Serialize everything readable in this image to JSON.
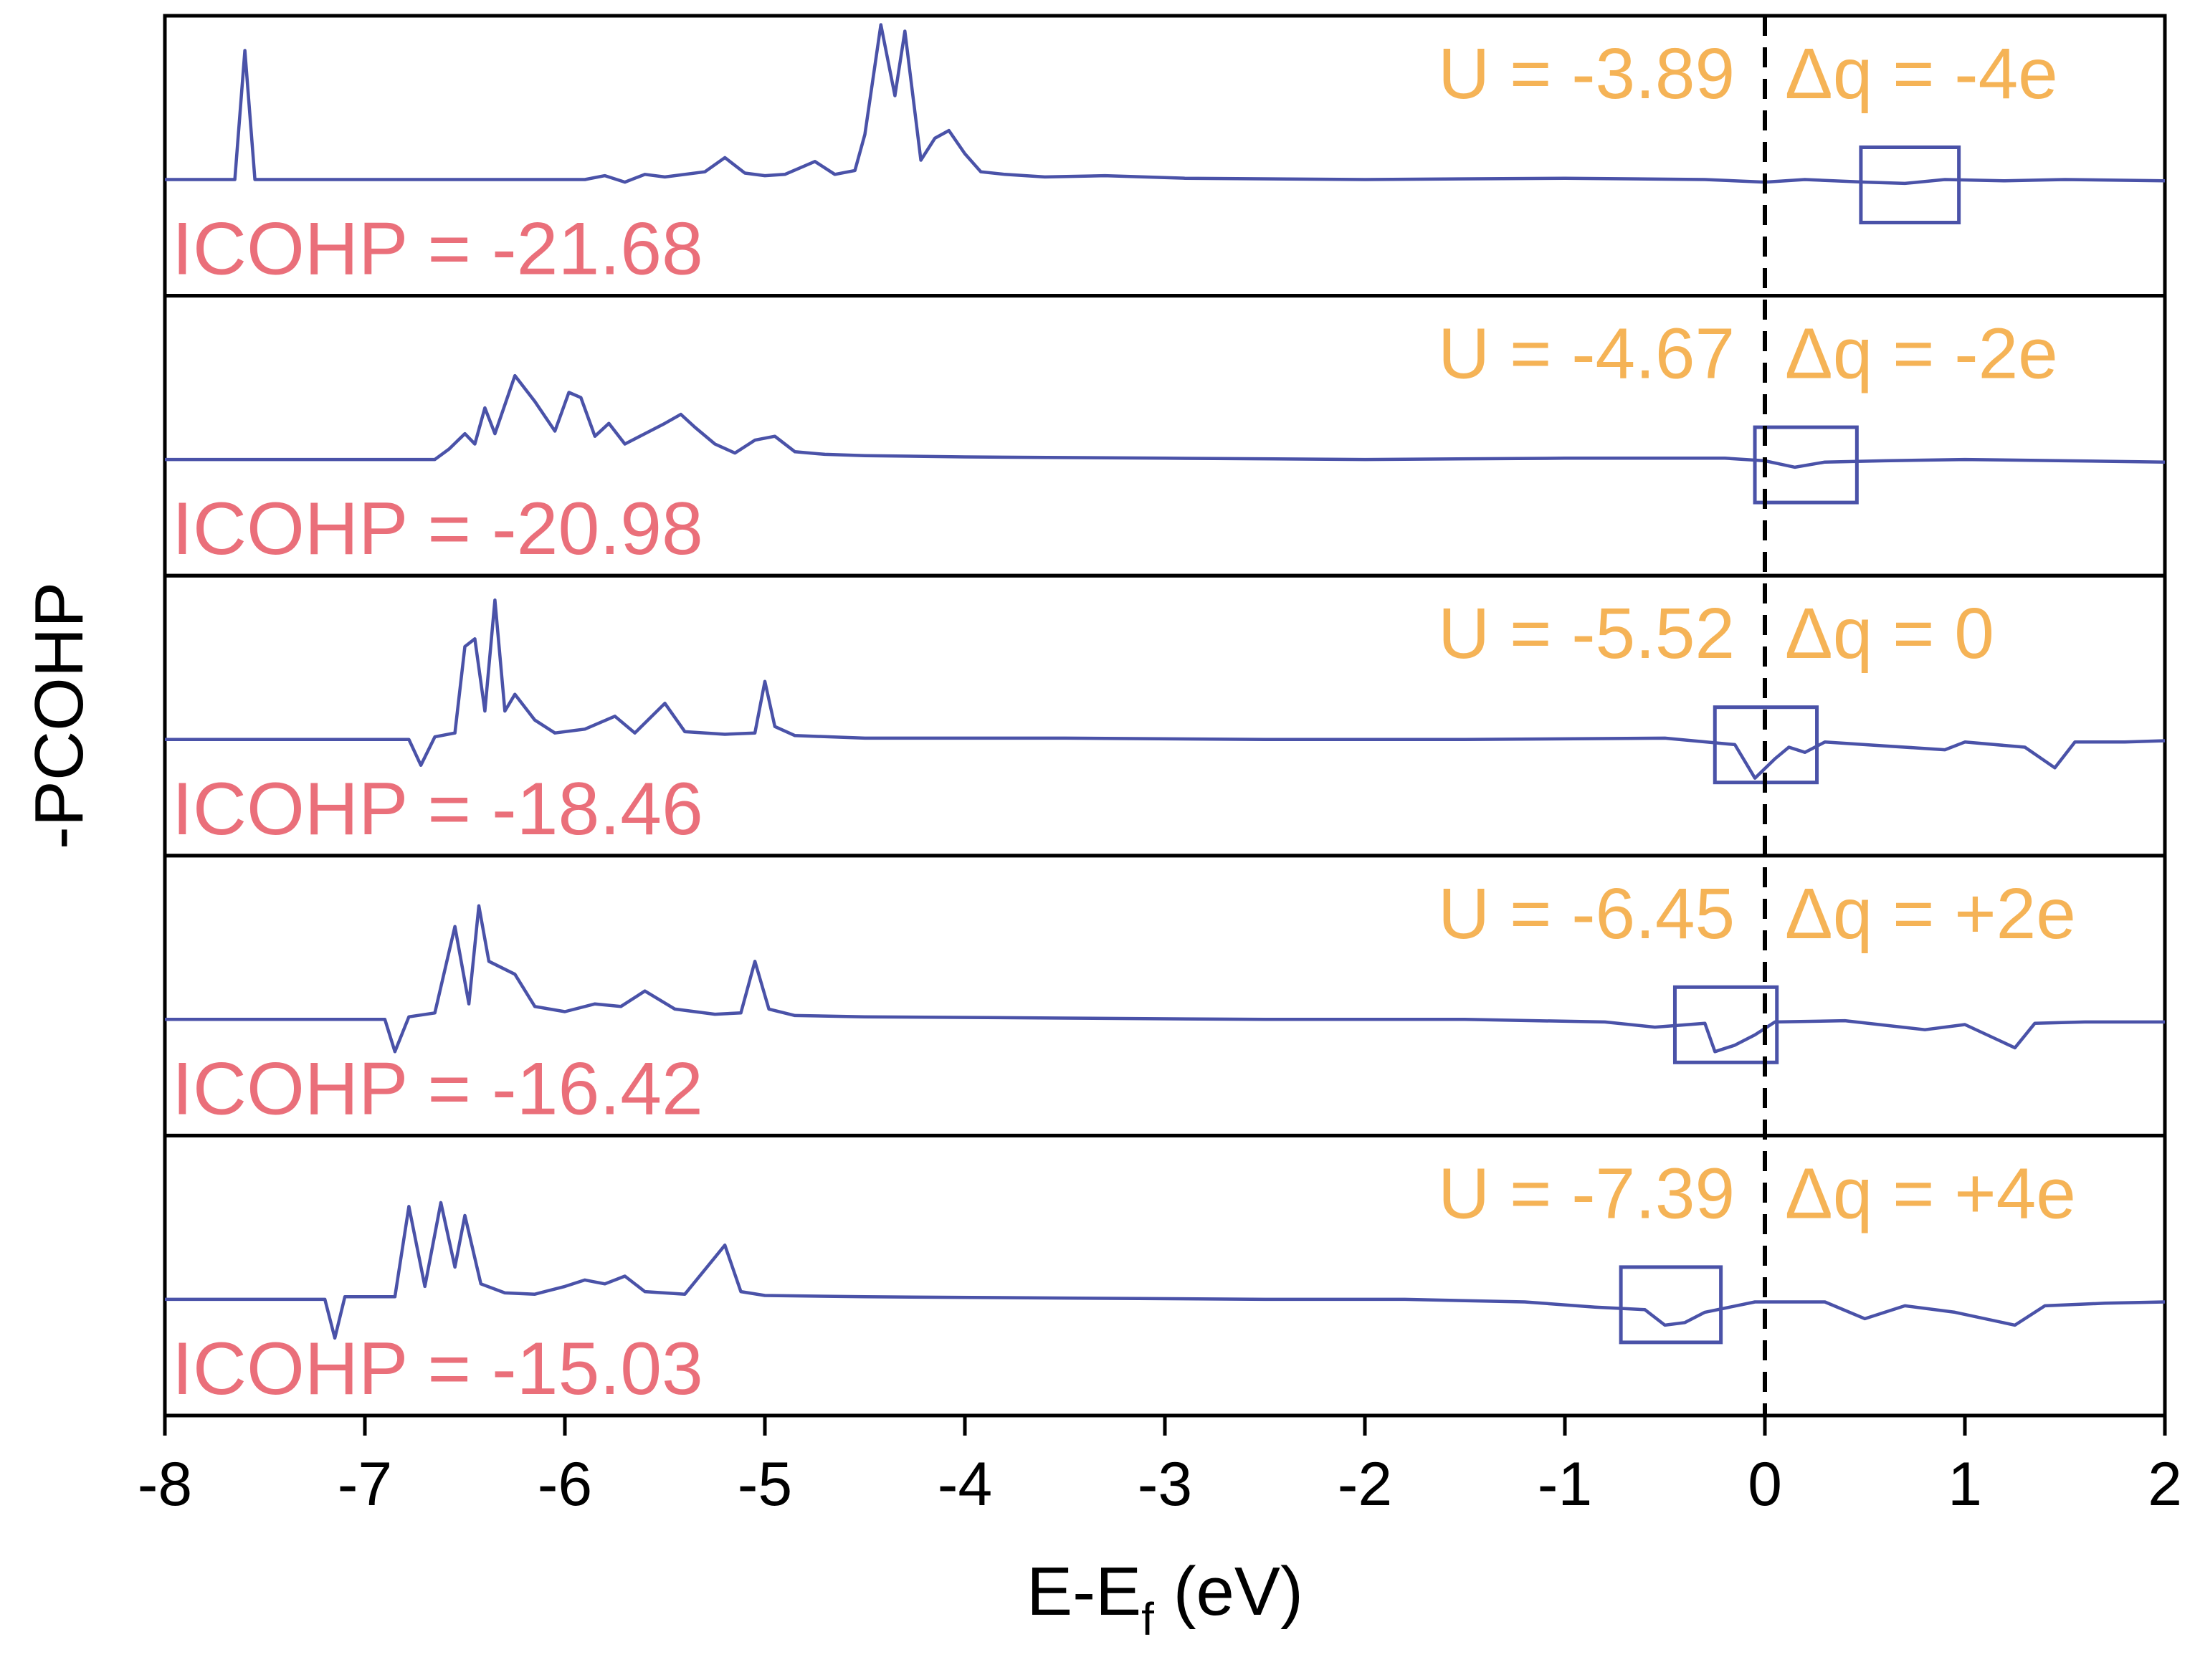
{
  "colors": {
    "line": "#4a52a8",
    "highlight_box": "#4a52a8",
    "u_text": "#f5b356",
    "icohp_text": "#ea6f7a",
    "axis": "#000000",
    "fermi_line": "#000000"
  },
  "chart_data": {
    "type": "line",
    "xlabel_main": "E-E",
    "xlabel_sub": "f",
    "xlabel_tail": " (eV)",
    "ylabel": "-PCOHP",
    "xlim": [
      -8,
      2
    ],
    "xticks": [
      -8,
      -7,
      -6,
      -5,
      -4,
      -3,
      -2,
      -1,
      0,
      1,
      2
    ],
    "xtick_labels": [
      "-8",
      "-7",
      "-6",
      "-5",
      "-4",
      "-3",
      "-2",
      "-1",
      "0",
      "1",
      "2"
    ],
    "fermi_level_x": 0,
    "panels": [
      {
        "u_text": "U = -3.89",
        "dq_text": "Δq = -4e",
        "icohp_text": "ICOHP = -21.68",
        "highlight_x": [
          0.48,
          0.97
        ],
        "points": [
          [
            -8,
            0
          ],
          [
            -7.65,
            0
          ],
          [
            -7.6,
            1.0
          ],
          [
            -7.55,
            0
          ],
          [
            -5.9,
            0
          ],
          [
            -5.8,
            0.03
          ],
          [
            -5.7,
            -0.02
          ],
          [
            -5.6,
            0.04
          ],
          [
            -5.5,
            0.02
          ],
          [
            -5.3,
            0.06
          ],
          [
            -5.2,
            0.17
          ],
          [
            -5.1,
            0.05
          ],
          [
            -5.0,
            0.03
          ],
          [
            -4.9,
            0.04
          ],
          [
            -4.75,
            0.14
          ],
          [
            -4.65,
            0.04
          ],
          [
            -4.55,
            0.07
          ],
          [
            -4.5,
            0.35
          ],
          [
            -4.42,
            1.2
          ],
          [
            -4.35,
            0.65
          ],
          [
            -4.3,
            1.15
          ],
          [
            -4.22,
            0.15
          ],
          [
            -4.15,
            0.32
          ],
          [
            -4.08,
            0.38
          ],
          [
            -4.0,
            0.2
          ],
          [
            -3.92,
            0.06
          ],
          [
            -3.8,
            0.04
          ],
          [
            -3.6,
            0.02
          ],
          [
            -3.3,
            0.03
          ],
          [
            -2.9,
            0.01
          ],
          [
            -2.0,
            0.0
          ],
          [
            -1.0,
            0.01
          ],
          [
            -0.3,
            0.0
          ],
          [
            0.0,
            -0.02
          ],
          [
            0.2,
            0.0
          ],
          [
            0.5,
            -0.02
          ],
          [
            0.7,
            -0.03
          ],
          [
            0.9,
            0.0
          ],
          [
            1.2,
            -0.01
          ],
          [
            1.5,
            0.0
          ],
          [
            2.0,
            -0.01
          ]
        ]
      },
      {
        "u_text": "U = -4.67",
        "dq_text": "Δq = -2e",
        "icohp_text": "ICOHP = -20.98",
        "highlight_x": [
          -0.05,
          0.46
        ],
        "points": [
          [
            -8,
            0
          ],
          [
            -6.65,
            0
          ],
          [
            -6.58,
            0.08
          ],
          [
            -6.5,
            0.2
          ],
          [
            -6.45,
            0.12
          ],
          [
            -6.4,
            0.4
          ],
          [
            -6.35,
            0.2
          ],
          [
            -6.25,
            0.65
          ],
          [
            -6.15,
            0.45
          ],
          [
            -6.05,
            0.22
          ],
          [
            -5.98,
            0.52
          ],
          [
            -5.92,
            0.48
          ],
          [
            -5.85,
            0.18
          ],
          [
            -5.78,
            0.28
          ],
          [
            -5.7,
            0.12
          ],
          [
            -5.6,
            0.2
          ],
          [
            -5.5,
            0.28
          ],
          [
            -5.42,
            0.35
          ],
          [
            -5.35,
            0.25
          ],
          [
            -5.25,
            0.12
          ],
          [
            -5.15,
            0.05
          ],
          [
            -5.05,
            0.15
          ],
          [
            -4.95,
            0.18
          ],
          [
            -4.85,
            0.06
          ],
          [
            -4.7,
            0.04
          ],
          [
            -4.5,
            0.03
          ],
          [
            -4.0,
            0.02
          ],
          [
            -3.0,
            0.01
          ],
          [
            -2.0,
            0.0
          ],
          [
            -1.0,
            0.01
          ],
          [
            -0.2,
            0.01
          ],
          [
            0.0,
            -0.01
          ],
          [
            0.15,
            -0.06
          ],
          [
            0.3,
            -0.02
          ],
          [
            0.6,
            -0.01
          ],
          [
            1.0,
            0.0
          ],
          [
            1.5,
            -0.01
          ],
          [
            2.0,
            -0.02
          ]
        ]
      },
      {
        "u_text": "U = -5.52",
        "dq_text": "Δq = 0",
        "icohp_text": "ICOHP = -18.46",
        "highlight_x": [
          -0.25,
          0.26
        ],
        "points": [
          [
            -8,
            0
          ],
          [
            -6.78,
            0
          ],
          [
            -6.72,
            -0.2
          ],
          [
            -6.65,
            0.02
          ],
          [
            -6.55,
            0.05
          ],
          [
            -6.5,
            0.72
          ],
          [
            -6.45,
            0.78
          ],
          [
            -6.4,
            0.22
          ],
          [
            -6.35,
            1.08
          ],
          [
            -6.3,
            0.22
          ],
          [
            -6.25,
            0.35
          ],
          [
            -6.15,
            0.15
          ],
          [
            -6.05,
            0.05
          ],
          [
            -5.9,
            0.08
          ],
          [
            -5.75,
            0.18
          ],
          [
            -5.65,
            0.05
          ],
          [
            -5.5,
            0.28
          ],
          [
            -5.4,
            0.06
          ],
          [
            -5.2,
            0.04
          ],
          [
            -5.05,
            0.05
          ],
          [
            -5.0,
            0.45
          ],
          [
            -4.95,
            0.1
          ],
          [
            -4.85,
            0.03
          ],
          [
            -4.5,
            0.01
          ],
          [
            -3.5,
            0.01
          ],
          [
            -2.5,
            0.0
          ],
          [
            -1.5,
            0.0
          ],
          [
            -0.5,
            0.01
          ],
          [
            -0.15,
            -0.04
          ],
          [
            -0.05,
            -0.3
          ],
          [
            0.05,
            -0.15
          ],
          [
            0.12,
            -0.06
          ],
          [
            0.2,
            -0.1
          ],
          [
            0.3,
            -0.02
          ],
          [
            0.6,
            -0.05
          ],
          [
            0.9,
            -0.08
          ],
          [
            1.0,
            -0.02
          ],
          [
            1.3,
            -0.06
          ],
          [
            1.45,
            -0.22
          ],
          [
            1.55,
            -0.02
          ],
          [
            1.8,
            -0.02
          ],
          [
            2.0,
            -0.01
          ]
        ]
      },
      {
        "u_text": "U = -6.45",
        "dq_text": "Δq = +2e",
        "icohp_text": "ICOHP = -16.42",
        "highlight_x": [
          -0.45,
          0.06
        ],
        "points": [
          [
            -8,
            0
          ],
          [
            -6.9,
            0
          ],
          [
            -6.85,
            -0.25
          ],
          [
            -6.78,
            0.02
          ],
          [
            -6.65,
            0.05
          ],
          [
            -6.55,
            0.72
          ],
          [
            -6.48,
            0.12
          ],
          [
            -6.43,
            0.88
          ],
          [
            -6.38,
            0.45
          ],
          [
            -6.25,
            0.35
          ],
          [
            -6.15,
            0.1
          ],
          [
            -6.0,
            0.06
          ],
          [
            -5.85,
            0.12
          ],
          [
            -5.72,
            0.1
          ],
          [
            -5.6,
            0.22
          ],
          [
            -5.45,
            0.08
          ],
          [
            -5.25,
            0.04
          ],
          [
            -5.12,
            0.05
          ],
          [
            -5.05,
            0.45
          ],
          [
            -4.98,
            0.08
          ],
          [
            -4.85,
            0.03
          ],
          [
            -4.5,
            0.02
          ],
          [
            -3.5,
            0.01
          ],
          [
            -2.5,
            0.0
          ],
          [
            -1.5,
            0.0
          ],
          [
            -0.8,
            -0.02
          ],
          [
            -0.55,
            -0.06
          ],
          [
            -0.3,
            -0.03
          ],
          [
            -0.25,
            -0.25
          ],
          [
            -0.15,
            -0.2
          ],
          [
            -0.05,
            -0.12
          ],
          [
            0.05,
            -0.02
          ],
          [
            0.4,
            -0.01
          ],
          [
            0.8,
            -0.08
          ],
          [
            1.0,
            -0.04
          ],
          [
            1.25,
            -0.22
          ],
          [
            1.35,
            -0.03
          ],
          [
            1.6,
            -0.02
          ],
          [
            2.0,
            -0.02
          ]
        ]
      },
      {
        "u_text": "U = -7.39",
        "dq_text": "Δq = +4e",
        "icohp_text": "ICOHP = -15.03",
        "highlight_x": [
          -0.72,
          -0.22
        ],
        "points": [
          [
            -8,
            0
          ],
          [
            -7.2,
            0
          ],
          [
            -7.15,
            -0.3
          ],
          [
            -7.1,
            0.02
          ],
          [
            -6.85,
            0.02
          ],
          [
            -6.78,
            0.72
          ],
          [
            -6.7,
            0.1
          ],
          [
            -6.62,
            0.75
          ],
          [
            -6.55,
            0.25
          ],
          [
            -6.5,
            0.65
          ],
          [
            -6.42,
            0.12
          ],
          [
            -6.3,
            0.05
          ],
          [
            -6.15,
            0.04
          ],
          [
            -6.0,
            0.1
          ],
          [
            -5.9,
            0.15
          ],
          [
            -5.8,
            0.12
          ],
          [
            -5.7,
            0.18
          ],
          [
            -5.6,
            0.06
          ],
          [
            -5.4,
            0.04
          ],
          [
            -5.2,
            0.42
          ],
          [
            -5.12,
            0.06
          ],
          [
            -5.0,
            0.03
          ],
          [
            -4.5,
            0.02
          ],
          [
            -3.5,
            0.01
          ],
          [
            -2.5,
            0.0
          ],
          [
            -1.8,
            0.0
          ],
          [
            -1.2,
            -0.02
          ],
          [
            -0.85,
            -0.06
          ],
          [
            -0.6,
            -0.08
          ],
          [
            -0.5,
            -0.2
          ],
          [
            -0.4,
            -0.18
          ],
          [
            -0.3,
            -0.1
          ],
          [
            -0.05,
            -0.02
          ],
          [
            0.3,
            -0.02
          ],
          [
            0.5,
            -0.15
          ],
          [
            0.7,
            -0.05
          ],
          [
            0.95,
            -0.1
          ],
          [
            1.25,
            -0.2
          ],
          [
            1.4,
            -0.05
          ],
          [
            1.7,
            -0.03
          ],
          [
            2.0,
            -0.02
          ]
        ]
      }
    ]
  }
}
